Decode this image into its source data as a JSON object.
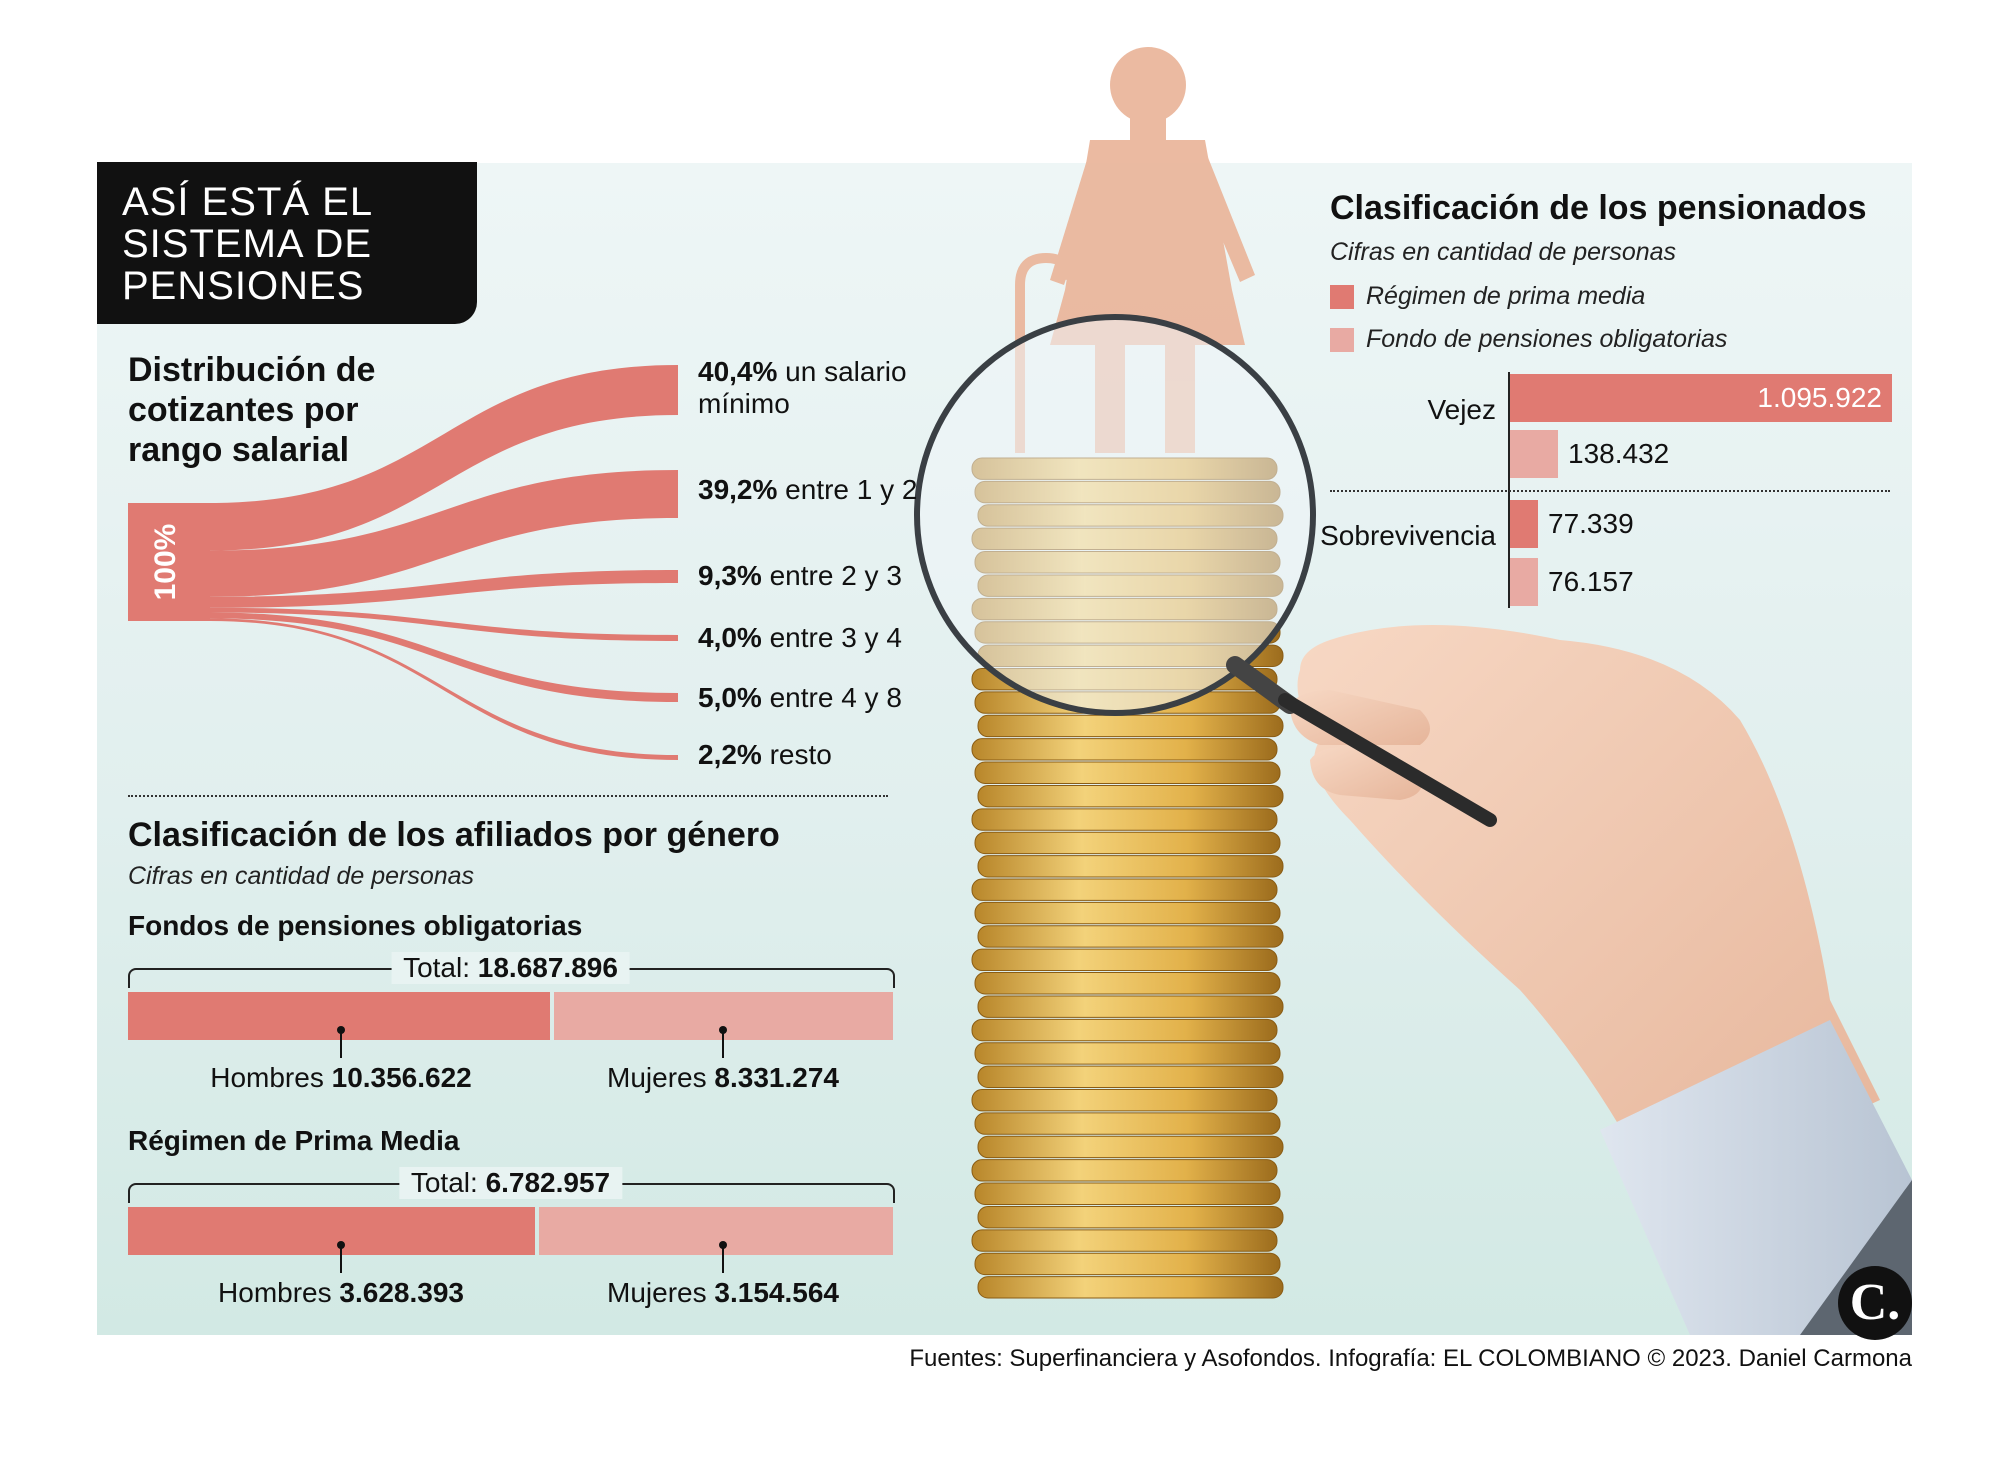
{
  "title_lines": [
    "ASÍ ESTÁ EL",
    "SISTEMA DE",
    "PENSIONES"
  ],
  "colors": {
    "primary": "#e07a72",
    "secondary": "#e8aaa3",
    "dark": "#111111"
  },
  "distribution": {
    "heading_lines": [
      "Distribución de",
      "cotizantes por",
      "rango salarial"
    ],
    "total_label": "100%",
    "items": [
      {
        "pct": "40,4%",
        "text": "un salario",
        "text2": "mínimo",
        "value": 40.4
      },
      {
        "pct": "39,2%",
        "text": "entre 1 y 2",
        "value": 39.2
      },
      {
        "pct": "9,3%",
        "text": "entre 2 y 3",
        "value": 9.3
      },
      {
        "pct": "4,0%",
        "text": "entre 3 y 4",
        "value": 4.0
      },
      {
        "pct": "5,0%",
        "text": "entre 4 y 8",
        "value": 5.0
      },
      {
        "pct": "2,2%",
        "text": "resto",
        "value": 2.2
      }
    ]
  },
  "gender": {
    "heading": "Clasificación de los afiliados por género",
    "subtitle": "Cifras en cantidad de personas",
    "groups": [
      {
        "name": "Fondos de pensiones obligatorias",
        "total_label": "Total:",
        "total": "18.687.896",
        "men_label": "Hombres",
        "men": "10.356.622",
        "men_value": 10356622,
        "women_label": "Mujeres",
        "women": "8.331.274",
        "women_value": 8331274
      },
      {
        "name": "Régimen de Prima Media",
        "total_label": "Total:",
        "total": "6.782.957",
        "men_label": "Hombres",
        "men": "3.628.393",
        "men_value": 3628393,
        "women_label": "Mujeres",
        "women": "3.154.564",
        "women_value": 3154564
      }
    ]
  },
  "pensioners": {
    "heading": "Clasificación de los pensionados",
    "subtitle": "Cifras en cantidad de personas",
    "legend": [
      "Régimen de prima media",
      "Fondo de pensiones obligatorias"
    ]
  },
  "chart_data": [
    {
      "type": "bar",
      "title": "Distribución de cotizantes por rango salarial",
      "categories": [
        "un salario mínimo",
        "entre 1 y 2",
        "entre 2 y 3",
        "entre 3 y 4",
        "entre 4 y 8",
        "resto"
      ],
      "values": [
        40.4,
        39.2,
        9.3,
        4.0,
        5.0,
        2.2
      ]
    },
    {
      "type": "bar",
      "title": "Clasificación de los afiliados por género",
      "categories": [
        "Fondos de pensiones obligatorias",
        "Régimen de Prima Media"
      ],
      "series": [
        {
          "name": "Hombres",
          "values": [
            10356622,
            3628393
          ]
        },
        {
          "name": "Mujeres",
          "values": [
            8331274,
            3154564
          ]
        }
      ]
    },
    {
      "type": "bar",
      "title": "Clasificación de los pensionados",
      "categories": [
        "Vejez",
        "Sobrevivencia"
      ],
      "series": [
        {
          "name": "Régimen de prima media",
          "values": [
            1095922,
            77339
          ],
          "labels": [
            "1.095.922",
            "77.339"
          ]
        },
        {
          "name": "Fondo de pensiones obligatorias",
          "values": [
            138432,
            76157
          ],
          "labels": [
            "138.432",
            "76.157"
          ]
        }
      ]
    }
  ],
  "footer": "Fuentes: Superfinanciera y Asofondos. Infografía: EL COLOMBIANO © 2023. Daniel Carmona",
  "logo_text": "C."
}
